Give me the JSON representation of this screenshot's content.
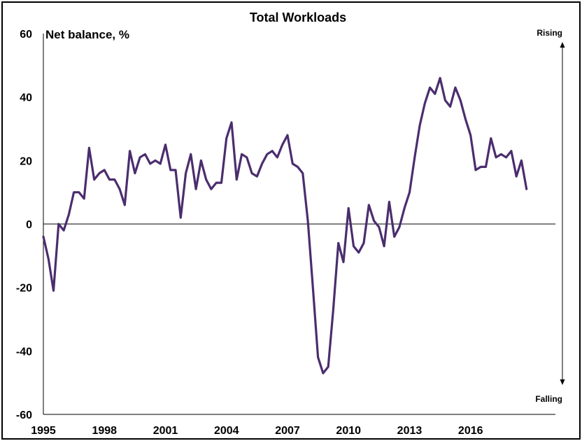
{
  "chart_data": {
    "type": "line",
    "title": "Total Workloads",
    "ylabel": "Net balance, %",
    "xlabel": "",
    "ylim": [
      -60,
      60
    ],
    "yticks": [
      -60,
      -40,
      -20,
      0,
      20,
      40,
      60
    ],
    "xlim": [
      1995,
      2020.17
    ],
    "xticks": [
      "1995",
      "1998",
      "2001",
      "2004",
      "2007",
      "2010",
      "2013",
      "2016"
    ],
    "grid": false,
    "legend": "none",
    "line_color": "#4b2d6e",
    "annotations": {
      "top": "Rising",
      "bottom": "Falling"
    },
    "series": [
      {
        "values": [
          [
            1995.0,
            -4
          ],
          [
            1995.25,
            -11
          ],
          [
            1995.5,
            -21
          ],
          [
            1995.75,
            0
          ],
          [
            1996.0,
            -2
          ],
          [
            1996.25,
            3
          ],
          [
            1996.5,
            10
          ],
          [
            1996.75,
            10
          ],
          [
            1997.0,
            8
          ],
          [
            1997.25,
            24
          ],
          [
            1997.5,
            14
          ],
          [
            1997.75,
            16
          ],
          [
            1998.0,
            17
          ],
          [
            1998.25,
            14
          ],
          [
            1998.5,
            14
          ],
          [
            1998.75,
            11
          ],
          [
            1999.0,
            6
          ],
          [
            1999.25,
            23
          ],
          [
            1999.5,
            16
          ],
          [
            1999.75,
            21
          ],
          [
            2000.0,
            22
          ],
          [
            2000.25,
            19
          ],
          [
            2000.5,
            20
          ],
          [
            2000.75,
            19
          ],
          [
            2001.0,
            25
          ],
          [
            2001.25,
            17
          ],
          [
            2001.5,
            17
          ],
          [
            2001.75,
            2
          ],
          [
            2002.0,
            16
          ],
          [
            2002.25,
            22
          ],
          [
            2002.5,
            11
          ],
          [
            2002.75,
            20
          ],
          [
            2003.0,
            14
          ],
          [
            2003.25,
            11
          ],
          [
            2003.5,
            13
          ],
          [
            2003.75,
            13
          ],
          [
            2004.0,
            27
          ],
          [
            2004.25,
            32
          ],
          [
            2004.5,
            14
          ],
          [
            2004.75,
            22
          ],
          [
            2005.0,
            21
          ],
          [
            2005.25,
            16
          ],
          [
            2005.5,
            15
          ],
          [
            2005.75,
            19
          ],
          [
            2006.0,
            22
          ],
          [
            2006.25,
            23
          ],
          [
            2006.5,
            21
          ],
          [
            2006.75,
            25
          ],
          [
            2007.0,
            28
          ],
          [
            2007.25,
            19
          ],
          [
            2007.5,
            18
          ],
          [
            2007.75,
            16
          ],
          [
            2008.0,
            1
          ],
          [
            2008.25,
            -20
          ],
          [
            2008.5,
            -42
          ],
          [
            2008.75,
            -47
          ],
          [
            2009.0,
            -45
          ],
          [
            2009.25,
            -27
          ],
          [
            2009.5,
            -6
          ],
          [
            2009.75,
            -12
          ],
          [
            2010.0,
            5
          ],
          [
            2010.25,
            -7
          ],
          [
            2010.5,
            -9
          ],
          [
            2010.75,
            -6
          ],
          [
            2011.0,
            6
          ],
          [
            2011.25,
            1
          ],
          [
            2011.5,
            -1
          ],
          [
            2011.75,
            -7
          ],
          [
            2012.0,
            7
          ],
          [
            2012.25,
            -4
          ],
          [
            2012.5,
            -1
          ],
          [
            2012.75,
            5
          ],
          [
            2013.0,
            10
          ],
          [
            2013.25,
            21
          ],
          [
            2013.5,
            31
          ],
          [
            2013.75,
            38
          ],
          [
            2014.0,
            43
          ],
          [
            2014.25,
            41
          ],
          [
            2014.5,
            46
          ],
          [
            2014.75,
            39
          ],
          [
            2015.0,
            37
          ],
          [
            2015.25,
            43
          ],
          [
            2015.5,
            39
          ],
          [
            2015.75,
            33
          ],
          [
            2016.0,
            28
          ],
          [
            2016.25,
            17
          ],
          [
            2016.5,
            18
          ],
          [
            2016.75,
            18
          ],
          [
            2017.0,
            27
          ],
          [
            2017.25,
            21
          ],
          [
            2017.5,
            22
          ],
          [
            2017.75,
            21
          ],
          [
            2018.0,
            23
          ],
          [
            2018.25,
            15
          ],
          [
            2018.5,
            20
          ],
          [
            2018.75,
            11
          ]
        ]
      }
    ]
  }
}
